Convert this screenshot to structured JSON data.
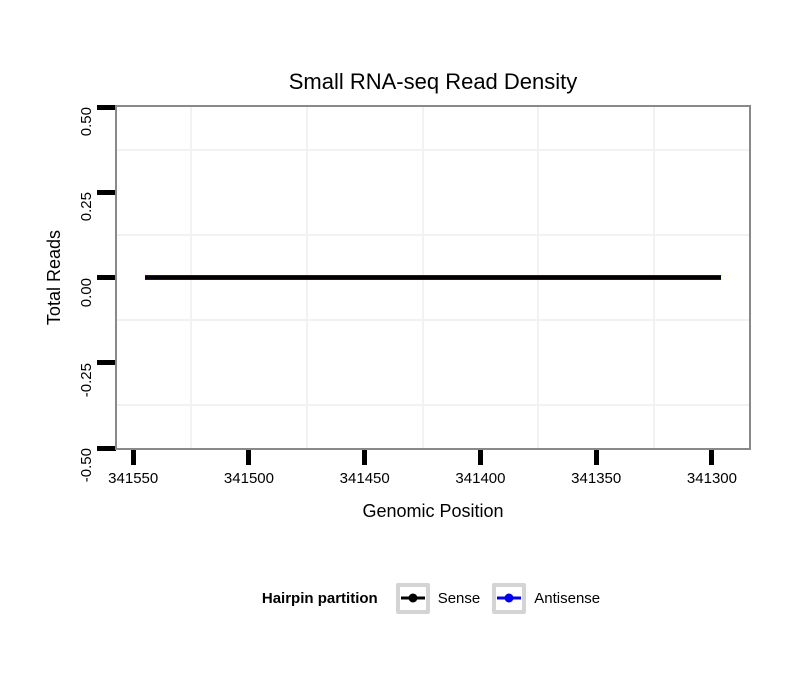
{
  "figure": {
    "background": "#ffffff"
  },
  "chart_data": {
    "type": "line",
    "title": "Small RNA-seq Read Density",
    "xlabel": "Genomic Position",
    "ylabel": "Total Reads",
    "x_axis": {
      "ticks": [
        341550,
        341500,
        341450,
        341400,
        341350,
        341300
      ],
      "reversed": true,
      "range": [
        341557,
        341284
      ]
    },
    "y_axis": {
      "ticks": [
        0.5,
        0.25,
        0,
        -0.25,
        -0.5
      ],
      "tick_labels": [
        "0.50",
        "0.25",
        "0.00",
        "-0.25",
        "-0.50"
      ],
      "range": [
        0.5,
        -0.5
      ]
    },
    "grid": {
      "major_visible": false,
      "minor_color": "#f2f2f2"
    },
    "series": [
      {
        "name": "Sense",
        "color": "#000000",
        "line_width": 3,
        "x": [
          341545,
          341296
        ],
        "y": [
          0,
          0
        ]
      },
      {
        "name": "Antisense",
        "color": "#0000ee",
        "line_width": 5.5,
        "x": [
          341545,
          341296
        ],
        "y": [
          0,
          0
        ]
      }
    ],
    "legend": {
      "title": "Hairpin partition",
      "position": "bottom",
      "entries": [
        {
          "label": "Sense",
          "color": "#000000"
        },
        {
          "label": "Antisense",
          "color": "#0000ee"
        }
      ]
    }
  },
  "colors": {
    "panel_border": "#898989",
    "tick": "#000000",
    "grid_minor": "#f2f2f2",
    "legend_key_border": "#d4d4d4"
  }
}
